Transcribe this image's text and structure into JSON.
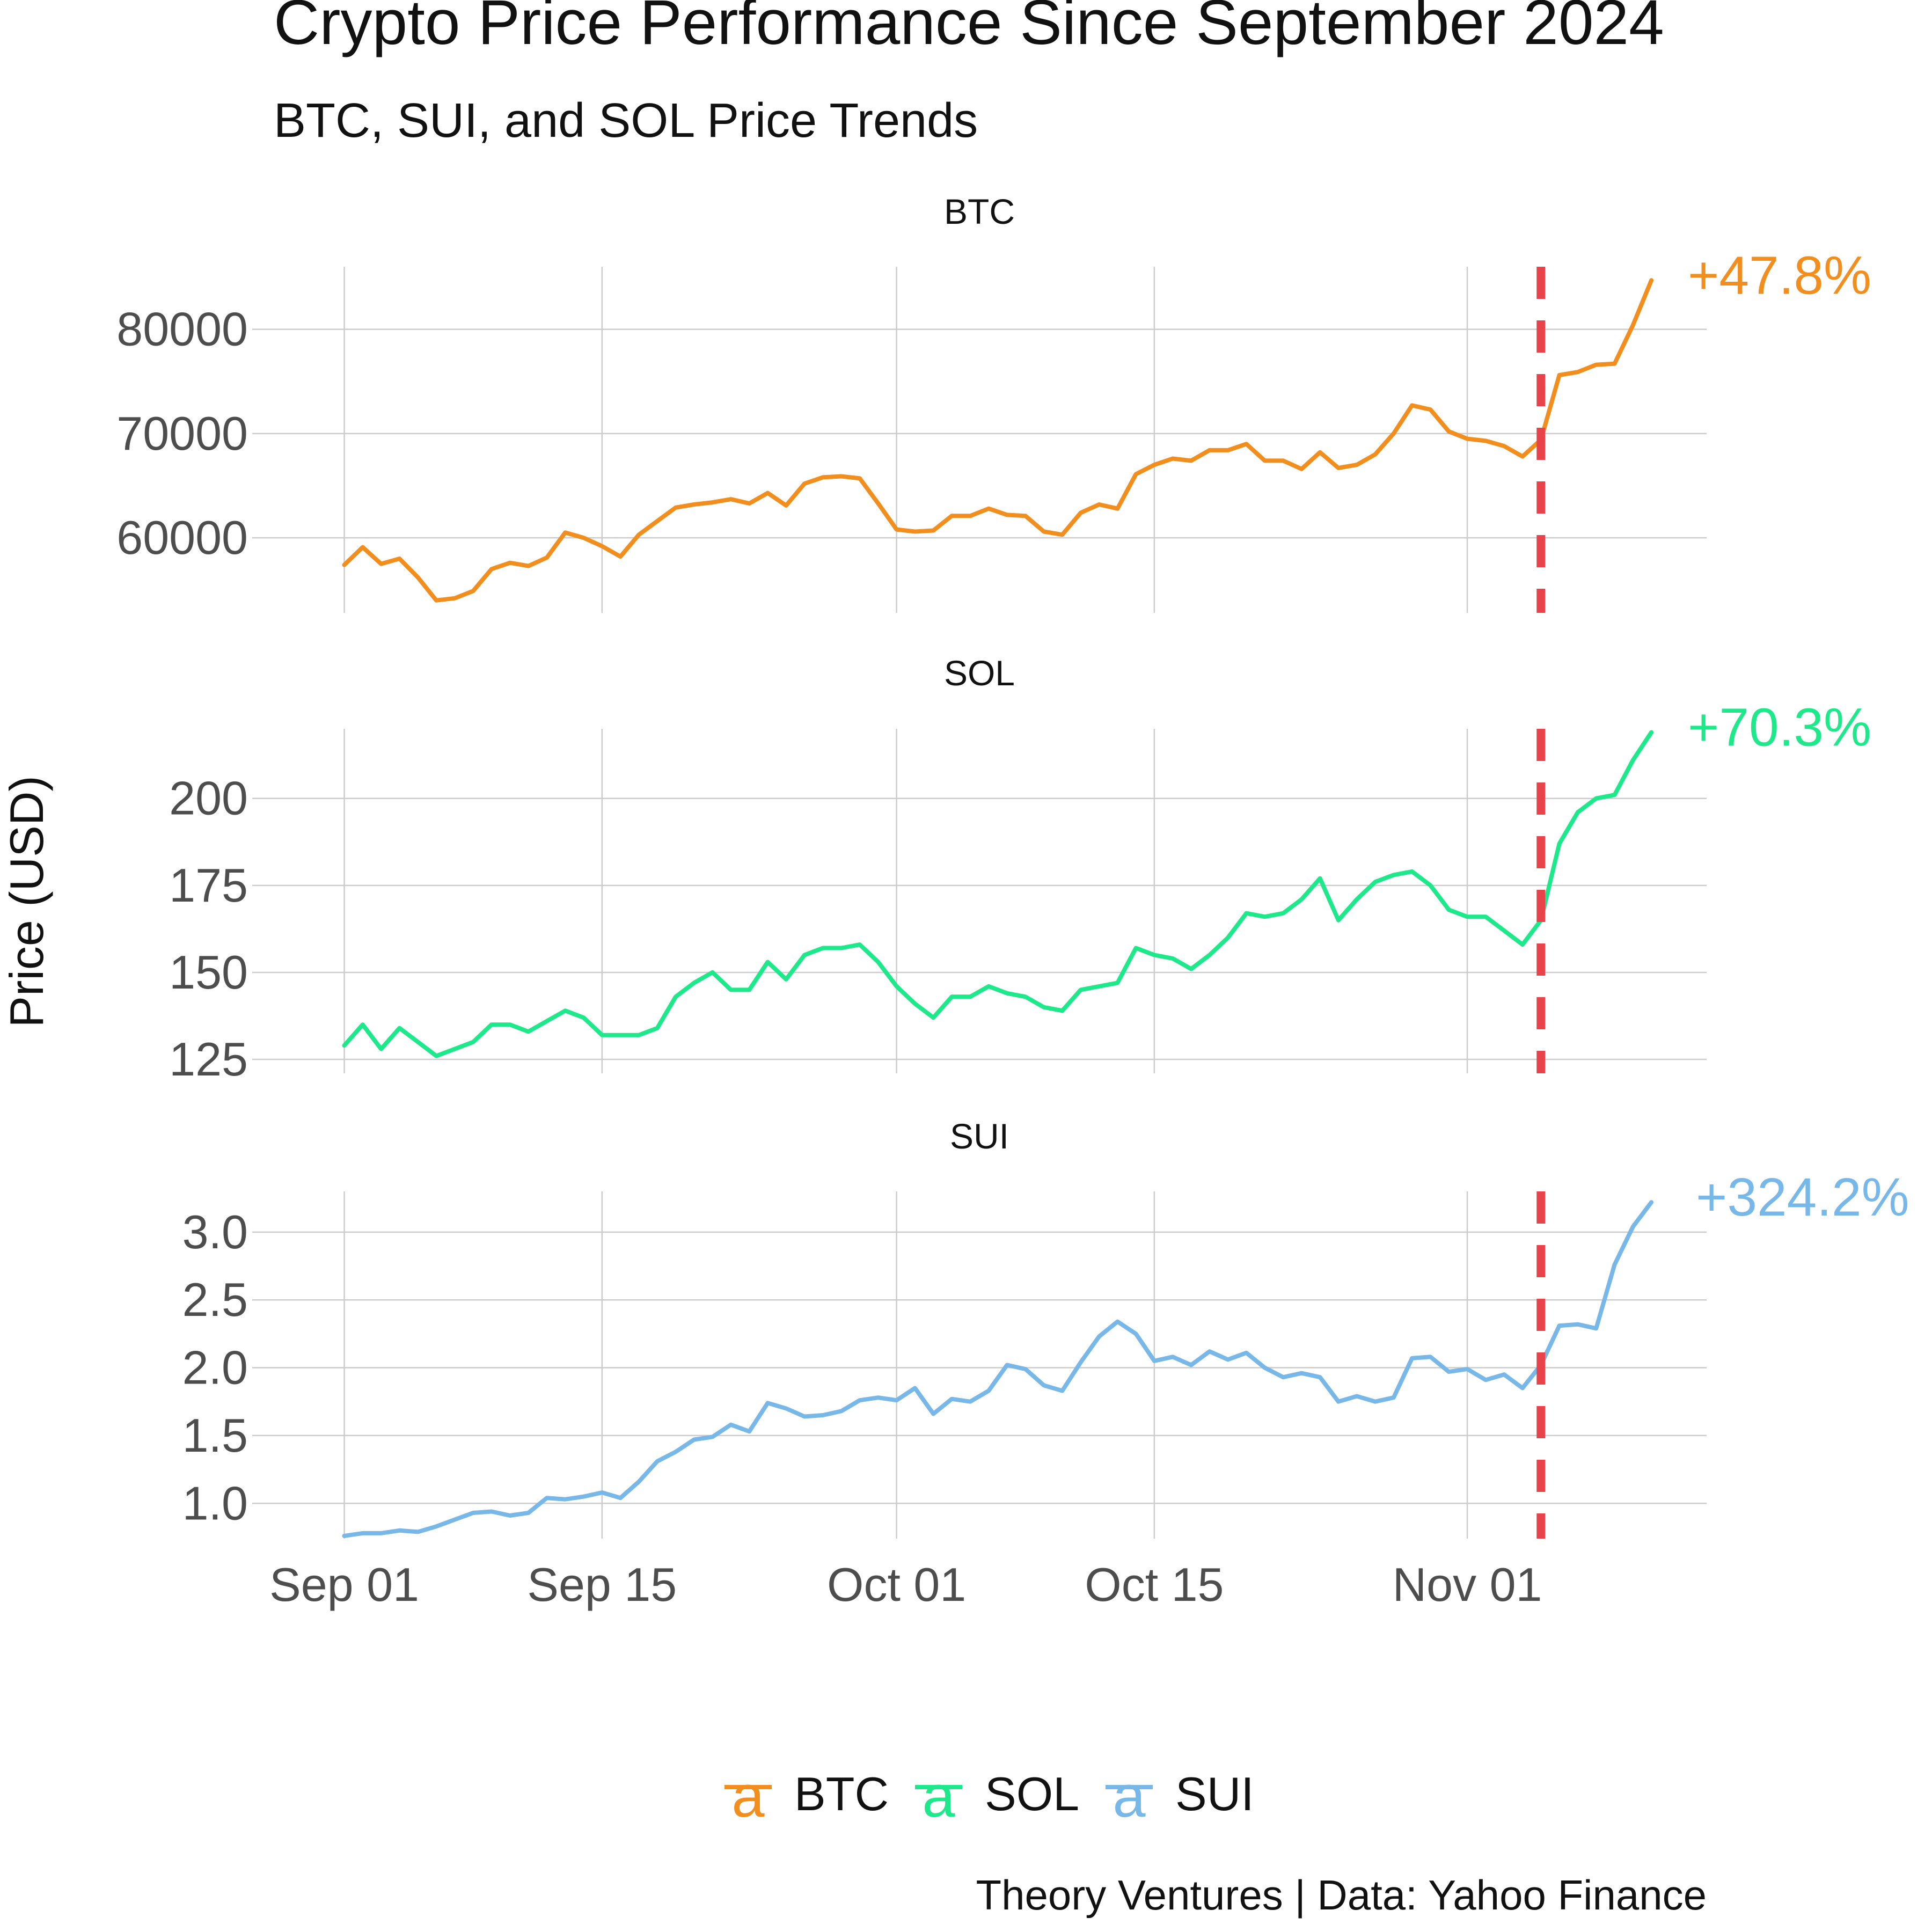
{
  "chart_data": {
    "type": "line",
    "layout": "faceted-vertical",
    "title": "Crypto Price Performance Since September 2024",
    "subtitle": "BTC, SUI, and SOL Price Trends",
    "ylabel": "Price (USD)",
    "caption": "Theory Ventures | Data: Yahoo Finance",
    "x_ticks": [
      {
        "date": "2024-09-01",
        "label": "Sep 01"
      },
      {
        "date": "2024-09-15",
        "label": "Sep 15"
      },
      {
        "date": "2024-10-01",
        "label": "Oct 01"
      },
      {
        "date": "2024-10-15",
        "label": "Oct 15"
      },
      {
        "date": "2024-11-01",
        "label": "Nov 01"
      }
    ],
    "x_range": [
      "2024-08-27",
      "2024-11-14"
    ],
    "event_line": {
      "date": "2024-11-05",
      "color": "#e8434b",
      "style": "dashed"
    },
    "grid": true,
    "legend": {
      "position": "bottom",
      "items": [
        "BTC",
        "SOL",
        "SUI"
      ],
      "glyph": "a"
    },
    "series": [
      {
        "name": "BTC",
        "color": "#f28e1e",
        "change_label": "+47.8%",
        "ylim": [
          52800,
          86000
        ],
        "yticks": [
          60000,
          70000,
          80000
        ],
        "x": [
          "2024-09-01",
          "2024-09-02",
          "2024-09-03",
          "2024-09-04",
          "2024-09-05",
          "2024-09-06",
          "2024-09-07",
          "2024-09-08",
          "2024-09-09",
          "2024-09-10",
          "2024-09-11",
          "2024-09-12",
          "2024-09-13",
          "2024-09-14",
          "2024-09-15",
          "2024-09-16",
          "2024-09-17",
          "2024-09-18",
          "2024-09-19",
          "2024-09-20",
          "2024-09-21",
          "2024-09-22",
          "2024-09-23",
          "2024-09-24",
          "2024-09-25",
          "2024-09-26",
          "2024-09-27",
          "2024-09-28",
          "2024-09-29",
          "2024-09-30",
          "2024-10-01",
          "2024-10-02",
          "2024-10-03",
          "2024-10-04",
          "2024-10-05",
          "2024-10-06",
          "2024-10-07",
          "2024-10-08",
          "2024-10-09",
          "2024-10-10",
          "2024-10-11",
          "2024-10-12",
          "2024-10-13",
          "2024-10-14",
          "2024-10-15",
          "2024-10-16",
          "2024-10-17",
          "2024-10-18",
          "2024-10-19",
          "2024-10-20",
          "2024-10-21",
          "2024-10-22",
          "2024-10-23",
          "2024-10-24",
          "2024-10-25",
          "2024-10-26",
          "2024-10-27",
          "2024-10-28",
          "2024-10-29",
          "2024-10-30",
          "2024-10-31",
          "2024-11-01",
          "2024-11-02",
          "2024-11-03",
          "2024-11-04",
          "2024-11-05",
          "2024-11-06",
          "2024-11-07",
          "2024-11-08",
          "2024-11-09",
          "2024-11-10",
          "2024-11-11"
        ],
        "values": [
          57400,
          59100,
          57500,
          58000,
          56200,
          54000,
          54200,
          54900,
          57000,
          57600,
          57300,
          58100,
          60500,
          60000,
          59200,
          58200,
          60300,
          61600,
          62900,
          63200,
          63400,
          63700,
          63300,
          64300,
          63100,
          65200,
          65800,
          65900,
          65700,
          63300,
          60800,
          60600,
          60700,
          62100,
          62100,
          62800,
          62200,
          62100,
          60600,
          60300,
          62400,
          63200,
          62800,
          66100,
          67000,
          67600,
          67400,
          68400,
          68400,
          69000,
          67400,
          67400,
          66600,
          68200,
          66700,
          67000,
          68000,
          70000,
          72700,
          72300,
          70200,
          69500,
          69300,
          68800,
          67800,
          69400,
          75600,
          75900,
          76600,
          76700,
          80400,
          84700
        ]
      },
      {
        "name": "SOL",
        "color": "#1de98b",
        "change_label": "+70.3%",
        "ylim": [
          121,
          220
        ],
        "yticks": [
          125,
          150,
          175,
          200
        ],
        "x": [
          "2024-09-01",
          "2024-09-02",
          "2024-09-03",
          "2024-09-04",
          "2024-09-05",
          "2024-09-06",
          "2024-09-07",
          "2024-09-08",
          "2024-09-09",
          "2024-09-10",
          "2024-09-11",
          "2024-09-12",
          "2024-09-13",
          "2024-09-14",
          "2024-09-15",
          "2024-09-16",
          "2024-09-17",
          "2024-09-18",
          "2024-09-19",
          "2024-09-20",
          "2024-09-21",
          "2024-09-22",
          "2024-09-23",
          "2024-09-24",
          "2024-09-25",
          "2024-09-26",
          "2024-09-27",
          "2024-09-28",
          "2024-09-29",
          "2024-09-30",
          "2024-10-01",
          "2024-10-02",
          "2024-10-03",
          "2024-10-04",
          "2024-10-05",
          "2024-10-06",
          "2024-10-07",
          "2024-10-08",
          "2024-10-09",
          "2024-10-10",
          "2024-10-11",
          "2024-10-12",
          "2024-10-13",
          "2024-10-14",
          "2024-10-15",
          "2024-10-16",
          "2024-10-17",
          "2024-10-18",
          "2024-10-19",
          "2024-10-20",
          "2024-10-21",
          "2024-10-22",
          "2024-10-23",
          "2024-10-24",
          "2024-10-25",
          "2024-10-26",
          "2024-10-27",
          "2024-10-28",
          "2024-10-29",
          "2024-10-30",
          "2024-10-31",
          "2024-11-01",
          "2024-11-02",
          "2024-11-03",
          "2024-11-04",
          "2024-11-05",
          "2024-11-06",
          "2024-11-07",
          "2024-11-08",
          "2024-11-09",
          "2024-11-10",
          "2024-11-11"
        ],
        "values": [
          129,
          135,
          128,
          134,
          130,
          126,
          128,
          130,
          135,
          135,
          133,
          136,
          139,
          137,
          132,
          132,
          132,
          134,
          143,
          147,
          150,
          145,
          145,
          153,
          148,
          155,
          157,
          157,
          158,
          153,
          146,
          141,
          137,
          143,
          143,
          146,
          144,
          143,
          140,
          139,
          145,
          146,
          147,
          157,
          155,
          154,
          151,
          155,
          160,
          167,
          166,
          167,
          171,
          177,
          165,
          171,
          176,
          178,
          179,
          175,
          168,
          166,
          166,
          162,
          158,
          165,
          187,
          196,
          200,
          201,
          211,
          219
        ]
      },
      {
        "name": "SUI",
        "color": "#78b8e8",
        "change_label": "+324.2%",
        "ylim": [
          0.74,
          3.3
        ],
        "yticks": [
          1.0,
          1.5,
          2.0,
          2.5,
          3.0
        ],
        "x": [
          "2024-09-01",
          "2024-09-02",
          "2024-09-03",
          "2024-09-04",
          "2024-09-05",
          "2024-09-06",
          "2024-09-07",
          "2024-09-08",
          "2024-09-09",
          "2024-09-10",
          "2024-09-11",
          "2024-09-12",
          "2024-09-13",
          "2024-09-14",
          "2024-09-15",
          "2024-09-16",
          "2024-09-17",
          "2024-09-18",
          "2024-09-19",
          "2024-09-20",
          "2024-09-21",
          "2024-09-22",
          "2024-09-23",
          "2024-09-24",
          "2024-09-25",
          "2024-09-26",
          "2024-09-27",
          "2024-09-28",
          "2024-09-29",
          "2024-09-30",
          "2024-10-01",
          "2024-10-02",
          "2024-10-03",
          "2024-10-04",
          "2024-10-05",
          "2024-10-06",
          "2024-10-07",
          "2024-10-08",
          "2024-10-09",
          "2024-10-10",
          "2024-10-11",
          "2024-10-12",
          "2024-10-13",
          "2024-10-14",
          "2024-10-15",
          "2024-10-16",
          "2024-10-17",
          "2024-10-18",
          "2024-10-19",
          "2024-10-20",
          "2024-10-21",
          "2024-10-22",
          "2024-10-23",
          "2024-10-24",
          "2024-10-25",
          "2024-10-26",
          "2024-10-27",
          "2024-10-28",
          "2024-10-29",
          "2024-10-30",
          "2024-10-31",
          "2024-11-01",
          "2024-11-02",
          "2024-11-03",
          "2024-11-04",
          "2024-11-05",
          "2024-11-06",
          "2024-11-07",
          "2024-11-08",
          "2024-11-09",
          "2024-11-10",
          "2024-11-11"
        ],
        "values": [
          0.76,
          0.78,
          0.78,
          0.8,
          0.79,
          0.83,
          0.88,
          0.93,
          0.94,
          0.91,
          0.93,
          1.04,
          1.03,
          1.05,
          1.08,
          1.04,
          1.16,
          1.31,
          1.38,
          1.47,
          1.49,
          1.58,
          1.53,
          1.74,
          1.7,
          1.64,
          1.65,
          1.68,
          1.76,
          1.78,
          1.76,
          1.85,
          1.66,
          1.77,
          1.75,
          1.83,
          2.02,
          1.99,
          1.87,
          1.83,
          2.04,
          2.23,
          2.34,
          2.25,
          2.05,
          2.08,
          2.02,
          2.12,
          2.06,
          2.11,
          2.0,
          1.93,
          1.96,
          1.93,
          1.75,
          1.79,
          1.75,
          1.78,
          2.07,
          2.08,
          1.97,
          1.99,
          1.91,
          1.95,
          1.85,
          2.02,
          2.31,
          2.32,
          2.29,
          2.76,
          3.04,
          3.22
        ]
      }
    ]
  }
}
